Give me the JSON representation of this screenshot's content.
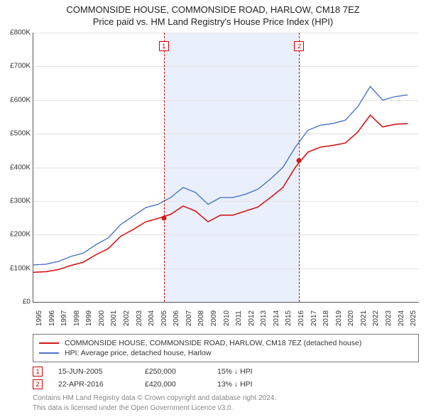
{
  "title": "COMMONSIDE HOUSE, COMMONSIDE ROAD, HARLOW, CM18 7EZ",
  "subtitle": "Price paid vs. HM Land Registry's House Price Index (HPI)",
  "chart": {
    "type": "line",
    "background_color": "#ffffff",
    "grid_color": "#e3e3e3",
    "axis_color": "#555555",
    "ylabel_prefix": "£",
    "ylim": [
      0,
      800000
    ],
    "ytick_step": 100000,
    "yticks": [
      "£0",
      "£100K",
      "£200K",
      "£300K",
      "£400K",
      "£500K",
      "£600K",
      "£700K",
      "£800K"
    ],
    "xlim": [
      1995,
      2025.9
    ],
    "xticks": [
      1995,
      1996,
      1997,
      1998,
      1999,
      2000,
      2001,
      2002,
      2003,
      2004,
      2005,
      2006,
      2007,
      2008,
      2009,
      2010,
      2011,
      2012,
      2013,
      2014,
      2015,
      2016,
      2017,
      2018,
      2019,
      2020,
      2021,
      2022,
      2023,
      2024,
      2025
    ],
    "label_fontsize": 10,
    "series": [
      {
        "name": "HPI: Average price, detached house, Harlow",
        "color": "#4a74c9",
        "line_width": 1.4,
        "points": [
          [
            1995,
            110000
          ],
          [
            1996,
            112000
          ],
          [
            1997,
            120000
          ],
          [
            1998,
            135000
          ],
          [
            1999,
            145000
          ],
          [
            2000,
            170000
          ],
          [
            2001,
            190000
          ],
          [
            2002,
            230000
          ],
          [
            2003,
            255000
          ],
          [
            2004,
            280000
          ],
          [
            2005,
            290000
          ],
          [
            2006,
            310000
          ],
          [
            2007,
            340000
          ],
          [
            2008,
            325000
          ],
          [
            2009,
            290000
          ],
          [
            2010,
            310000
          ],
          [
            2011,
            310000
          ],
          [
            2012,
            320000
          ],
          [
            2013,
            335000
          ],
          [
            2014,
            365000
          ],
          [
            2015,
            400000
          ],
          [
            2016,
            460000
          ],
          [
            2017,
            510000
          ],
          [
            2018,
            525000
          ],
          [
            2019,
            530000
          ],
          [
            2020,
            540000
          ],
          [
            2021,
            580000
          ],
          [
            2022,
            640000
          ],
          [
            2023,
            600000
          ],
          [
            2024,
            610000
          ],
          [
            2025,
            615000
          ]
        ]
      },
      {
        "name": "COMMONSIDE HOUSE, COMMONSIDE ROAD, HARLOW, CM18 7EZ (detached house)",
        "color": "#d41818",
        "line_width": 1.6,
        "points": [
          [
            1995,
            88000
          ],
          [
            1996,
            90000
          ],
          [
            1997,
            96000
          ],
          [
            1998,
            108000
          ],
          [
            1999,
            118000
          ],
          [
            2000,
            140000
          ],
          [
            2001,
            158000
          ],
          [
            2002,
            195000
          ],
          [
            2003,
            215000
          ],
          [
            2004,
            238000
          ],
          [
            2005,
            248000
          ],
          [
            2006,
            260000
          ],
          [
            2007,
            285000
          ],
          [
            2008,
            270000
          ],
          [
            2009,
            238000
          ],
          [
            2010,
            258000
          ],
          [
            2011,
            258000
          ],
          [
            2012,
            270000
          ],
          [
            2013,
            282000
          ],
          [
            2014,
            310000
          ],
          [
            2015,
            340000
          ],
          [
            2016,
            400000
          ],
          [
            2017,
            445000
          ],
          [
            2018,
            460000
          ],
          [
            2019,
            465000
          ],
          [
            2020,
            472000
          ],
          [
            2021,
            505000
          ],
          [
            2022,
            555000
          ],
          [
            2023,
            520000
          ],
          [
            2024,
            528000
          ],
          [
            2025,
            530000
          ]
        ]
      }
    ],
    "markers": [
      {
        "n": "1",
        "x": 2005.46,
        "y": 250000,
        "dot_color": "#d41818"
      },
      {
        "n": "2",
        "x": 2016.31,
        "y": 420000,
        "dot_color": "#d41818"
      }
    ],
    "mask_band": {
      "from_x": 2005.46,
      "to_x": 2016.31,
      "color": "#eaf0fb"
    },
    "vline_color": "#cc0000"
  },
  "legend": {
    "items": [
      {
        "color": "#d41818",
        "label": "COMMONSIDE HOUSE, COMMONSIDE ROAD, HARLOW, CM18 7EZ (detached house)"
      },
      {
        "color": "#4a74c9",
        "label": "HPI: Average price, detached house, Harlow"
      }
    ]
  },
  "table": {
    "rows": [
      {
        "n": "1",
        "date": "15-JUN-2005",
        "price": "£250,000",
        "delta": "15% ↓ HPI"
      },
      {
        "n": "2",
        "date": "22-APR-2016",
        "price": "£420,000",
        "delta": "13% ↓ HPI"
      }
    ]
  },
  "footer": {
    "line1": "Contains HM Land Registry data © Crown copyright and database right 2024.",
    "line2": "This data is licensed under the Open Government Licence v3.0."
  }
}
